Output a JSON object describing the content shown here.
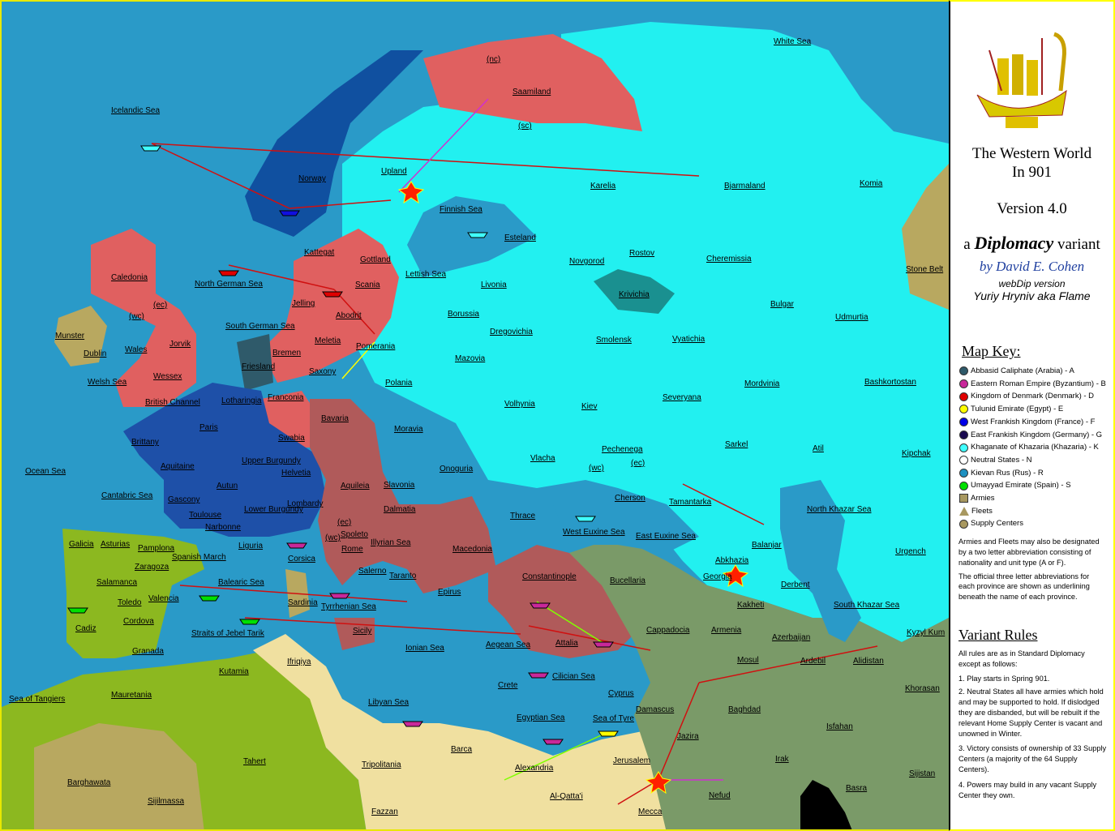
{
  "map": {
    "provinces": [
      "White Sea",
      "Icelandic Sea",
      "Saamiland",
      "(nc)",
      "(sc)",
      "Upland",
      "Norway",
      "Finnish Sea",
      "Karelia",
      "Bjarmaland",
      "Komia",
      "Kattegat",
      "Gottland",
      "Esteland",
      "Novgorod",
      "Rostov",
      "Cheremissia",
      "Stone Belt",
      "Caledonia",
      "North German Sea",
      "Scania",
      "Lettish Sea",
      "Livonia",
      "Krivichia",
      "Bulgar",
      "Udmurtia",
      "(wc)",
      "(ec)",
      "Munster",
      "Jorvik",
      "Jelling",
      "Abodrit",
      "Borussia",
      "Dregovichia",
      "Smolensk",
      "Vyatichia",
      "Dublin",
      "Wales",
      "South German Sea",
      "Meletia",
      "Pomerania",
      "Bremen",
      "Mazovia",
      "Friesland",
      "Saxony",
      "Welsh Sea",
      "Wessex",
      "Polania",
      "Volhynia",
      "Kiev",
      "Severyana",
      "Mordvinia",
      "Bashkortostan",
      "British Channel",
      "Lotharingia",
      "Franconia",
      "Bavaria",
      "Moravia",
      "Paris",
      "Swabia",
      "Brittany",
      "Pechenega",
      "Sarkel",
      "Atil",
      "Kipchak",
      "Aquitaine",
      "Upper Burgundy",
      "Helvetia",
      "Slavonia",
      "Vlacha",
      "Onoguria",
      "(wc)",
      "(ec)",
      "Ocean Sea",
      "Cantabric Sea",
      "Gascony",
      "Autun",
      "Toulouse",
      "Lombardy",
      "Aquileia",
      "Dalmatia",
      "Cherson",
      "Tamantarka",
      "North Khazar Sea",
      "Lower Burgundy",
      "Narbonne",
      "(ec)",
      "Spoleto",
      "(wc)",
      "Thrace",
      "Illyrian Sea",
      "Macedonia",
      "West Euxine Sea",
      "East Euxine Sea",
      "Galicia",
      "Asturias",
      "Pamplona",
      "Liguria",
      "Rome",
      "Balanjar",
      "Urgench",
      "Spanish March",
      "Corsica",
      "Zaragoza",
      "Salerno",
      "Taranto",
      "Constantinople",
      "Abkhazia",
      "Georgia",
      "Balearic Sea",
      "Salamanca",
      "Epirus",
      "Bucellaria",
      "Derbent",
      "Valencia",
      "Toledo",
      "Sardinia",
      "Tyrrhenian Sea",
      "Kakheti",
      "South Khazar Sea",
      "Cordova",
      "Cadiz",
      "Sicily",
      "Cappadocia",
      "Armenia",
      "Kyzyl Kum",
      "Straits of Jebel Tarik",
      "Azerbaijan",
      "Aegean Sea",
      "Attalia",
      "Ionian Sea",
      "Granada",
      "Ifriqiya",
      "Mosul",
      "Ardebil",
      "Alidistan",
      "Kutamia",
      "Cilician Sea",
      "Crete",
      "Cyprus",
      "Mauretania",
      "Sea of Tangiers",
      "Libyan Sea",
      "Khorasan",
      "Damascus",
      "Baghdad",
      "Egyptian Sea",
      "Sea of Tyre",
      "Isfahan",
      "Jazira",
      "Barca",
      "Jerusalem",
      "Tahert",
      "Tripolitania",
      "Irak",
      "Alexandria",
      "Sijistan",
      "Barghawata",
      "Basra",
      "Al-Qatta'i",
      "Nefud",
      "Sijilmassa",
      "Fazzan",
      "Mecca"
    ],
    "colors": {
      "sea": "#2a9ac8",
      "khazaria": "#22f0f0",
      "rus": "#1e8cc8",
      "denmark": "#e06060",
      "byzantium": "#b05a5a",
      "france": "#1e50a8",
      "spain": "#8cb820",
      "arabia": "#7a9a68",
      "egypt": "#f0e0a0",
      "neutral": "#b8a860",
      "orders": "#d01010"
    }
  },
  "panel": {
    "title_line1": "The Western World",
    "title_line2": "In 901",
    "version": "Version 4.0",
    "variant_a": "a",
    "variant_name": "Diplomacy",
    "variant_word": "variant",
    "author": "by David E. Cohen",
    "webdip": "webDip version",
    "porter": "Yuriy Hryniv aka Flame",
    "map_key_heading": "Map Key:",
    "key": [
      {
        "label": "Abbasid Caliphate (Arabia) - A",
        "color": "#2f5a6a"
      },
      {
        "label": "Eastern Roman Empire (Byzantium) - B",
        "color": "#c8289a"
      },
      {
        "label": "Kingdom of Denmark (Denmark) - D",
        "color": "#e00000"
      },
      {
        "label": "Tulunid Emirate (Egypt) - E",
        "color": "#ffff00"
      },
      {
        "label": "West Frankish Kingdom (France) - F",
        "color": "#0000e8"
      },
      {
        "label": "East Frankish Kingdom (Germany) - G",
        "color": "#1a0a50"
      },
      {
        "label": "Khaganate of Khazaria (Khazaria) - K",
        "color": "#40ffff"
      },
      {
        "label": "Neutral States - N",
        "color": "#ffffff"
      },
      {
        "label": "Kievan Rus (Rus) - R",
        "color": "#1e90c0"
      },
      {
        "label": "Umayyad Emirate (Spain) - S",
        "color": "#00e000"
      },
      {
        "label": "Armies",
        "color": "#a89860"
      },
      {
        "label": "Fleets",
        "color": "#a89860"
      },
      {
        "label": "Supply Centers",
        "color": "#a89860"
      }
    ],
    "abbrev_note": "Armies and Fleets may also be designated by a two letter abbreviation consisting of nationality and unit type (A or F).",
    "underline_note": "The official three letter abbreviations for each province are shown as underlining beneath the name of each province.",
    "rules_heading": "Variant Rules",
    "rules_intro": "All rules are as in Standard Diplomacy except as follows:",
    "rules": [
      "1. Play starts in Spring 901.",
      "2. Neutral States all have armies which hold and may be supported to hold.  If dislodged they are disbanded, but will be rebuilt if the relevant Home Supply Center is vacant and unowned in Winter.",
      "3. Victory consists of ownership of 33 Supply Centers (a majority of the 64 Supply Centers).",
      "4. Powers may build in any vacant Supply Center they own."
    ]
  }
}
